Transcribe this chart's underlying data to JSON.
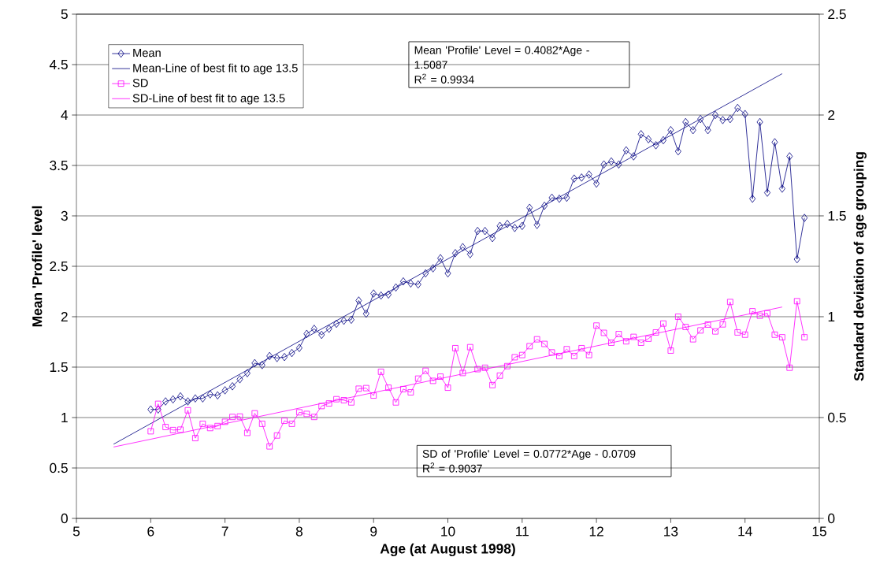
{
  "chart_data": {
    "type": "line",
    "xlabel": "Age (at August 1998)",
    "ylabel": "Mean 'Profile' level",
    "y2label": "Standard deviation of age grouping",
    "xlim": [
      5,
      15
    ],
    "xticks": [
      5,
      6,
      7,
      8,
      9,
      10,
      11,
      12,
      13,
      14,
      15
    ],
    "ylim": [
      0,
      5
    ],
    "yticks": [
      0,
      0.5,
      1,
      1.5,
      2,
      2.5,
      3,
      3.5,
      4,
      4.5,
      5
    ],
    "y2lim": [
      0,
      2.5
    ],
    "y2ticks": [
      0,
      0.5,
      1,
      1.5,
      2,
      2.5
    ],
    "grid": "y",
    "legend": "top left",
    "annotations": [
      "Mean 'Profile' Level = 0.4082*Age - 1.5087",
      "R$^{2}$ = 0.9934",
      "SD of 'Profile' Level = 0.0772*Age - 0.0709",
      "R$^{2}$ = 0.9037"
    ],
    "series": [
      {
        "name": "Mean",
        "color": "#000080",
        "marker": "diamond",
        "x": [
          6.0,
          6.1,
          6.2,
          6.3,
          6.4,
          6.5,
          6.6,
          6.7,
          6.8,
          6.9,
          7.0,
          7.1,
          7.2,
          7.3,
          7.4,
          7.5,
          7.6,
          7.7,
          7.8,
          7.9,
          8.0,
          8.1,
          8.2,
          8.3,
          8.4,
          8.5,
          8.6,
          8.7,
          8.8,
          8.9,
          9.0,
          9.1,
          9.2,
          9.3,
          9.4,
          9.5,
          9.6,
          9.7,
          9.8,
          9.9,
          10.0,
          10.1,
          10.2,
          10.3,
          10.4,
          10.5,
          10.6,
          10.7,
          10.8,
          10.9,
          11.0,
          11.1,
          11.2,
          11.3,
          11.4,
          11.5,
          11.6,
          11.7,
          11.8,
          11.9,
          12.0,
          12.1,
          12.2,
          12.3,
          12.4,
          12.5,
          12.6,
          12.7,
          12.8,
          12.9,
          13.0,
          13.1,
          13.2,
          13.3,
          13.4,
          13.5,
          13.6,
          13.7,
          13.8,
          13.9,
          14.0,
          14.1,
          14.2,
          14.3,
          14.4,
          14.5,
          14.6,
          14.7,
          14.8
        ],
        "values": [
          1.08,
          1.08,
          1.16,
          1.18,
          1.21,
          1.16,
          1.19,
          1.19,
          1.23,
          1.22,
          1.27,
          1.31,
          1.38,
          1.44,
          1.54,
          1.52,
          1.61,
          1.59,
          1.6,
          1.64,
          1.69,
          1.83,
          1.88,
          1.82,
          1.88,
          1.93,
          1.96,
          1.97,
          2.16,
          2.03,
          2.23,
          2.21,
          2.22,
          2.29,
          2.35,
          2.33,
          2.32,
          2.43,
          2.48,
          2.58,
          2.43,
          2.63,
          2.69,
          2.62,
          2.85,
          2.85,
          2.78,
          2.9,
          2.92,
          2.88,
          2.9,
          3.08,
          2.91,
          3.1,
          3.18,
          3.17,
          3.18,
          3.37,
          3.38,
          3.41,
          3.32,
          3.51,
          3.54,
          3.51,
          3.65,
          3.59,
          3.81,
          3.76,
          3.7,
          3.75,
          3.85,
          3.64,
          3.93,
          3.85,
          3.96,
          3.85,
          4.0,
          3.95,
          3.96,
          4.07,
          4.01,
          3.17,
          3.93,
          3.23,
          3.73,
          3.27,
          3.59,
          2.57,
          2.98
        ]
      },
      {
        "name": "Mean-Line of best fit to age 13.5",
        "color": "#000080",
        "marker": "none",
        "x": [
          5.5,
          14.5
        ],
        "values": [
          0.736,
          4.41
        ]
      },
      {
        "name": "SD",
        "color": "#ff00ff",
        "marker": "square",
        "axis": "y2",
        "x": [
          6.0,
          6.1,
          6.2,
          6.3,
          6.4,
          6.5,
          6.6,
          6.7,
          6.8,
          6.9,
          7.0,
          7.1,
          7.2,
          7.3,
          7.4,
          7.5,
          7.6,
          7.7,
          7.8,
          7.9,
          8.0,
          8.1,
          8.2,
          8.3,
          8.4,
          8.5,
          8.6,
          8.7,
          8.8,
          8.9,
          9.0,
          9.1,
          9.2,
          9.3,
          9.4,
          9.5,
          9.6,
          9.7,
          9.8,
          9.9,
          10.0,
          10.1,
          10.2,
          10.3,
          10.4,
          10.5,
          10.6,
          10.7,
          10.8,
          10.9,
          11.0,
          11.1,
          11.2,
          11.3,
          11.4,
          11.5,
          11.6,
          11.7,
          11.8,
          11.9,
          12.0,
          12.1,
          12.2,
          12.3,
          12.4,
          12.5,
          12.6,
          12.7,
          12.8,
          12.9,
          13.0,
          13.1,
          13.2,
          13.3,
          13.4,
          13.5,
          13.6,
          13.7,
          13.8,
          13.9,
          14.0,
          14.1,
          14.2,
          14.3,
          14.4,
          14.5,
          14.6,
          14.7,
          14.8
        ],
        "values": [
          0.432,
          0.568,
          0.453,
          0.438,
          0.44,
          0.536,
          0.398,
          0.469,
          0.448,
          0.458,
          0.479,
          0.503,
          0.505,
          0.424,
          0.521,
          0.469,
          0.357,
          0.411,
          0.484,
          0.469,
          0.526,
          0.518,
          0.503,
          0.557,
          0.57,
          0.591,
          0.586,
          0.575,
          0.643,
          0.646,
          0.609,
          0.727,
          0.648,
          0.575,
          0.641,
          0.625,
          0.693,
          0.732,
          0.682,
          0.703,
          0.648,
          0.844,
          0.721,
          0.849,
          0.74,
          0.747,
          0.661,
          0.708,
          0.755,
          0.799,
          0.81,
          0.854,
          0.888,
          0.865,
          0.823,
          0.805,
          0.839,
          0.805,
          0.844,
          0.81,
          0.956,
          0.92,
          0.871,
          0.914,
          0.878,
          0.9,
          0.871,
          0.891,
          0.922,
          0.966,
          0.832,
          1.0,
          0.949,
          0.888,
          0.932,
          0.961,
          0.927,
          0.962,
          1.073,
          0.922,
          0.911,
          1.027,
          1.005,
          1.017,
          0.911,
          0.898,
          0.747,
          1.077,
          0.898
        ]
      },
      {
        "name": "SD-Line of best fit to age 13.5",
        "color": "#ff00ff",
        "marker": "none",
        "axis": "y2",
        "x": [
          5.5,
          14.5
        ],
        "values": [
          0.354,
          1.048
        ]
      }
    ]
  }
}
